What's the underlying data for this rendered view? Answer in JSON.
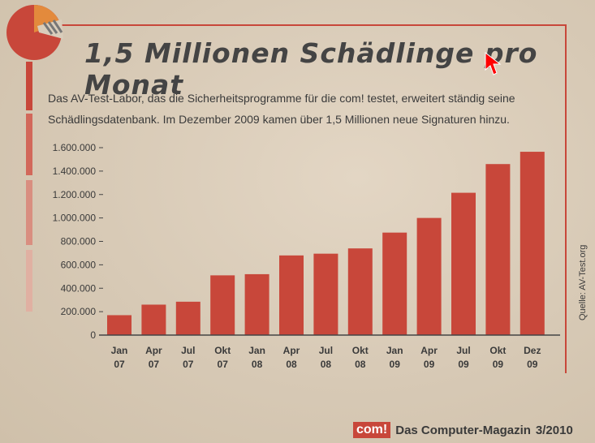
{
  "header": {
    "title": "1,5 Millionen Schädlinge pro Monat",
    "intro": "Das AV-Test-Labor, das die Sicherheitsprogramme für die com! testet, erweitert ständig seine Schädlingsdatenbank. Im Dezember 2009 kamen über 1,5 Millionen neue Signaturen hinzu."
  },
  "source_label": "Quelle: AV-Test.org",
  "footer": {
    "brand": "com!",
    "magazine": "Das Computer-Magazin",
    "issue": "3/2010"
  },
  "colors": {
    "accent": "#c8473a",
    "logo_orange": "#e38a3c",
    "text": "#3a3a3a"
  },
  "chart_data": {
    "type": "bar",
    "title": "1,5 Millionen Schädlinge pro Monat",
    "xlabel": "",
    "ylabel": "",
    "ylim": [
      0,
      1600000
    ],
    "y_ticks": [
      0,
      200000,
      400000,
      600000,
      800000,
      1000000,
      1200000,
      1400000,
      1600000
    ],
    "y_tick_labels": [
      "0",
      "200.000",
      "400.000",
      "600.000",
      "800.000",
      "1.000.000",
      "1.200.000",
      "1.400.000",
      "1.600.000"
    ],
    "categories": [
      [
        "Jan",
        "07"
      ],
      [
        "Apr",
        "07"
      ],
      [
        "Jul",
        "07"
      ],
      [
        "Okt",
        "07"
      ],
      [
        "Jan",
        "08"
      ],
      [
        "Apr",
        "08"
      ],
      [
        "Jul",
        "08"
      ],
      [
        "Okt",
        "08"
      ],
      [
        "Jan",
        "09"
      ],
      [
        "Apr",
        "09"
      ],
      [
        "Jul",
        "09"
      ],
      [
        "Okt",
        "09"
      ],
      [
        "Dez",
        "09"
      ]
    ],
    "values": [
      170000,
      260000,
      285000,
      510000,
      520000,
      680000,
      695000,
      740000,
      875000,
      1000000,
      1215000,
      1460000,
      1565000
    ],
    "grid": false
  }
}
